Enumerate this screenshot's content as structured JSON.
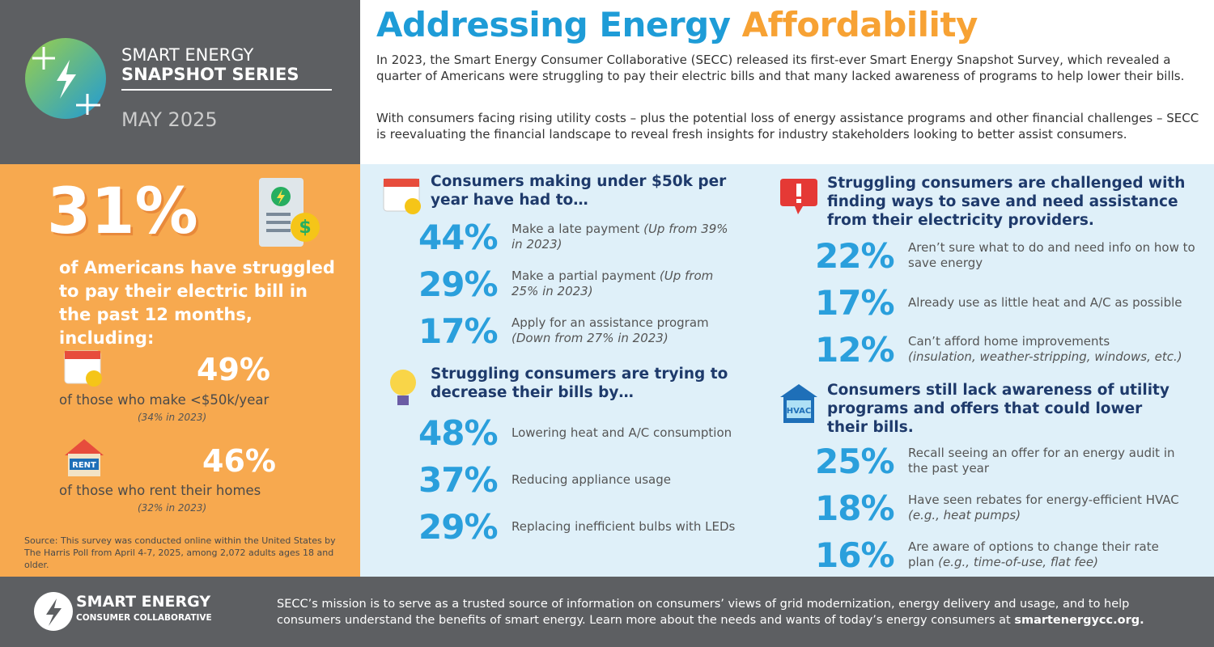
{
  "header": {
    "series_line1": "SMART ENERGY",
    "series_line2": "SNAPSHOT SERIES",
    "date": "MAY 2025",
    "title_part1": "Addressing Energy",
    "title_part2": "Affordability",
    "paragraphs": [
      "In 2023, the Smart Energy Consumer Collaborative (SECC) released its first-ever Smart Energy Snapshot Survey, which revealed a quarter of Americans were struggling to pay their electric bills and that many lacked awareness of programs to help lower their bills.",
      "With consumers facing rising utility costs – plus the potential loss of energy assistance programs and other financial challenges – SECC is reevaluating the financial landscape to reveal fresh insights for industry stakeholders looking to better assist consumers."
    ]
  },
  "left_panel": {
    "headline_stat": "31%",
    "headline_text": "of Americans have struggled to pay their electric bill in the past 12 months, including:",
    "stats": [
      {
        "value": "49%",
        "label": "of those who make <$50k/year",
        "note": "(34% in 2023)"
      },
      {
        "value": "46%",
        "label": "of those who rent their homes",
        "note": "(32% in 2023)",
        "icon_text": "RENT"
      }
    ],
    "source": "Source: This survey was conducted online within the United States by The Harris Poll from April 4-7, 2025, among 2,072 adults ages 18 and older."
  },
  "sections": [
    {
      "title": "Consumers making under $50k per year have had to…",
      "items": [
        {
          "value": "44%",
          "label": "Make a late payment",
          "note": "(Up from 39% in 2023)"
        },
        {
          "value": "29%",
          "label": "Make a partial payment",
          "note": "(Up from 25% in 2023)"
        },
        {
          "value": "17%",
          "label": "Apply for an assistance program",
          "note": "(Down from 27% in 2023)"
        }
      ]
    },
    {
      "title": "Struggling consumers are trying to decrease their bills by…",
      "items": [
        {
          "value": "48%",
          "label": "Lowering heat and A/C consumption"
        },
        {
          "value": "37%",
          "label": "Reducing appliance usage"
        },
        {
          "value": "29%",
          "label": "Replacing inefficient bulbs with LEDs"
        }
      ]
    },
    {
      "title": "Struggling consumers are challenged with finding ways to save and need assistance from their electricity providers.",
      "items": [
        {
          "value": "22%",
          "label": "Aren’t sure what to do and need info on how to save energy"
        },
        {
          "value": "17%",
          "label": "Already use as little heat and A/C as possible"
        },
        {
          "value": "12%",
          "label": "Can’t afford home improvements",
          "note": "(insulation, weather-stripping, windows, etc.)"
        }
      ]
    },
    {
      "title": "Consumers still lack awareness of utility programs and offers that could lower their bills.",
      "icon_text": "HVAC",
      "items": [
        {
          "value": "25%",
          "label": "Recall seeing an offer for an energy audit in the past year"
        },
        {
          "value": "18%",
          "label": "Have seen rebates for energy-efficient HVAC",
          "note": "(e.g., heat pumps)"
        },
        {
          "value": "16%",
          "label": "Are aware of options to change their rate plan",
          "note": "(e.g., time-of-use, flat fee)"
        }
      ]
    }
  ],
  "footer": {
    "org_line1": "SMART ENERGY",
    "org_line2": "CONSUMER COLLABORATIVE",
    "mission": "SECC’s mission is to serve as a trusted source of information on consumers’ views of grid modernization, energy delivery and usage, and to help consumers understand the benefits of smart energy. Learn more about the needs and wants of today’s energy consumers at",
    "link": "smartenergycc.org."
  }
}
